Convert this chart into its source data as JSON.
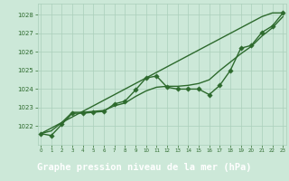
{
  "title": "Graphe pression niveau de la mer (hPa)",
  "xlabel_hours": [
    0,
    1,
    2,
    3,
    4,
    5,
    6,
    7,
    8,
    9,
    10,
    11,
    12,
    13,
    14,
    15,
    16,
    17,
    18,
    19,
    20,
    21,
    22,
    23
  ],
  "pressure_main": [
    1021.6,
    1021.5,
    1022.1,
    1022.7,
    1022.7,
    1022.75,
    1022.8,
    1023.2,
    1023.35,
    1023.95,
    1024.6,
    1024.7,
    1024.1,
    1024.0,
    1024.0,
    1024.0,
    1023.7,
    1024.2,
    1025.0,
    1026.2,
    1026.35,
    1027.05,
    1027.4,
    1028.1
  ],
  "pressure_smooth": [
    1021.6,
    1021.75,
    1022.2,
    1022.75,
    1022.75,
    1022.8,
    1022.85,
    1023.1,
    1023.25,
    1023.6,
    1023.9,
    1024.1,
    1024.15,
    1024.15,
    1024.2,
    1024.3,
    1024.5,
    1025.0,
    1025.45,
    1025.9,
    1026.3,
    1026.85,
    1027.3,
    1027.9
  ],
  "pressure_trend": [
    1021.6,
    1021.9,
    1022.2,
    1022.5,
    1022.8,
    1023.1,
    1023.4,
    1023.7,
    1024.0,
    1024.3,
    1024.6,
    1024.9,
    1025.2,
    1025.5,
    1025.8,
    1026.1,
    1026.4,
    1026.7,
    1027.0,
    1027.3,
    1027.6,
    1027.9,
    1028.1,
    1028.1
  ],
  "ylim": [
    1021.0,
    1028.6
  ],
  "yticks": [
    1022,
    1023,
    1024,
    1025,
    1026,
    1027,
    1028
  ],
  "xlim": [
    -0.3,
    23.3
  ],
  "line_color": "#2d6a2d",
  "bg_color": "#cce8d8",
  "plot_bg": "#cce8d8",
  "grid_color": "#aacfbb",
  "title_bg": "#1e5c1e",
  "title_color": "#ffffff",
  "title_fontsize": 7.5,
  "marker_size": 2.8,
  "line_width": 1.0
}
